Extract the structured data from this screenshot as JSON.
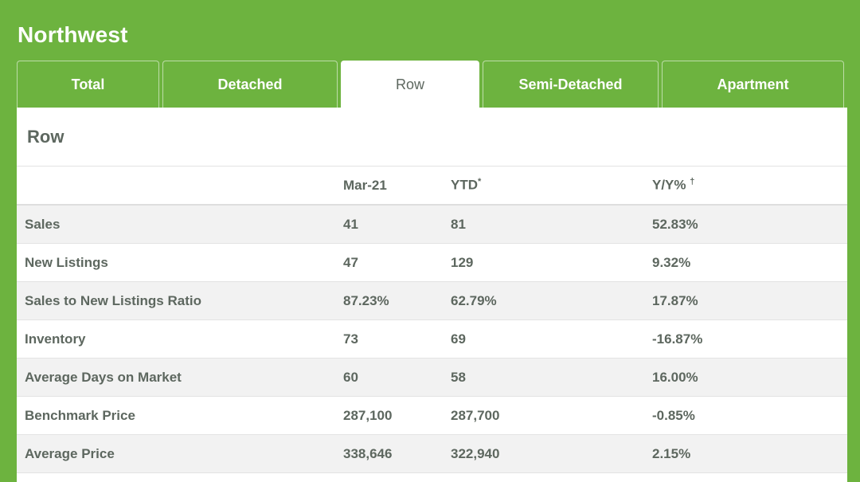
{
  "region": "Northwest",
  "tabs": [
    {
      "label": "Total",
      "active": false
    },
    {
      "label": "Detached",
      "active": false
    },
    {
      "label": "Row",
      "active": true
    },
    {
      "label": "Semi-Detached",
      "active": false
    },
    {
      "label": "Apartment",
      "active": false
    }
  ],
  "panel": {
    "title": "Row",
    "columns": {
      "month": "Mar-21",
      "ytd": "YTD",
      "ytd_mark": "*",
      "yy": "Y/Y%",
      "yy_mark": "†"
    },
    "rows": [
      {
        "label": "Sales",
        "month": "41",
        "ytd": "81",
        "yy": "52.83%"
      },
      {
        "label": "New Listings",
        "month": "47",
        "ytd": "129",
        "yy": "9.32%"
      },
      {
        "label": "Sales to New Listings Ratio",
        "month": "87.23%",
        "ytd": "62.79%",
        "yy": "17.87%"
      },
      {
        "label": "Inventory",
        "month": "73",
        "ytd": "69",
        "yy": "-16.87%"
      },
      {
        "label": "Average Days on Market",
        "month": "60",
        "ytd": "58",
        "yy": "16.00%"
      },
      {
        "label": "Benchmark Price",
        "month": "287,100",
        "ytd": "287,700",
        "yy": "-0.85%"
      },
      {
        "label": "Average Price",
        "month": "338,646",
        "ytd": "322,940",
        "yy": "2.15%"
      }
    ]
  },
  "colors": {
    "brand_green": "#6db33f",
    "text": "#5d675f",
    "stripe": "#f2f2f2"
  }
}
